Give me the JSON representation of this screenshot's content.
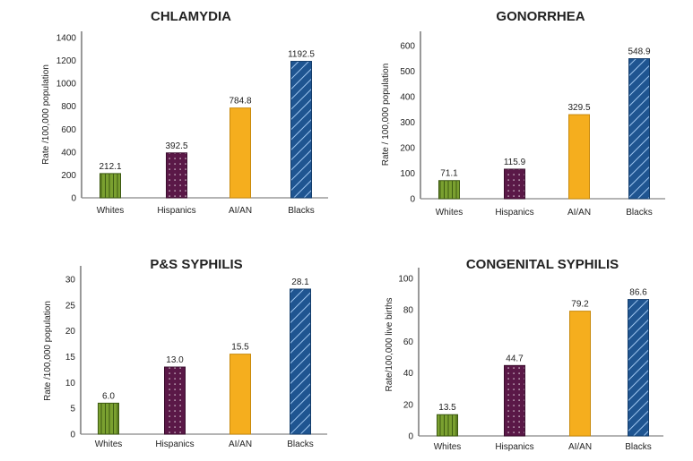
{
  "chart_data": [
    {
      "type": "bar",
      "title": "CHLAMYDIA",
      "xlabel": "",
      "ylabel": "Rate /100,000 population",
      "categories": [
        "Whites",
        "Hispanics",
        "AI/AN",
        "Blacks"
      ],
      "values": [
        212.1,
        392.5,
        784.8,
        1192.5
      ],
      "value_labels": [
        "212.1",
        "392.5",
        "784.8",
        "1192.5"
      ],
      "ylim": [
        0,
        1400
      ],
      "yticks": [
        0,
        200,
        400,
        600,
        800,
        1000,
        1200,
        1400
      ],
      "grid": false
    },
    {
      "type": "bar",
      "title": "GONORRHEA",
      "xlabel": "",
      "ylabel": "Rate / 100,000 population",
      "categories": [
        "Whites",
        "Hispanics",
        "AI/AN",
        "Blacks"
      ],
      "values": [
        71.1,
        115.9,
        329.5,
        548.9
      ],
      "value_labels": [
        "71.1",
        "115.9",
        "329.5",
        "548.9"
      ],
      "ylim": [
        0,
        600
      ],
      "yticks": [
        0,
        100,
        200,
        300,
        400,
        500,
        600
      ],
      "grid": false
    },
    {
      "type": "bar",
      "title": "P&S SYPHILIS",
      "xlabel": "",
      "ylabel": "Rate /100,000 population",
      "categories": [
        "Whites",
        "Hispanics",
        "AI/AN",
        "Blacks"
      ],
      "values": [
        6.0,
        13.0,
        15.5,
        28.1
      ],
      "value_labels": [
        "6.0",
        "13.0",
        "15.5",
        "28.1"
      ],
      "ylim": [
        0,
        30
      ],
      "yticks": [
        0,
        5,
        10,
        15,
        20,
        25,
        30
      ],
      "grid": false
    },
    {
      "type": "bar",
      "title": "CONGENITAL SYPHILIS",
      "xlabel": "",
      "ylabel": "Rate/100,000 live births",
      "categories": [
        "Whites",
        "Hispanics",
        "AI/AN",
        "Blacks"
      ],
      "values": [
        13.5,
        44.7,
        79.2,
        86.6
      ],
      "value_labels": [
        "13.5",
        "44.7",
        "79.2",
        "86.6"
      ],
      "ylim": [
        0,
        100
      ],
      "yticks": [
        0,
        20,
        40,
        60,
        80,
        100
      ],
      "grid": false
    }
  ],
  "series_styles": [
    {
      "category": "Whites",
      "pattern": "vertical-stripes",
      "color": "#6b8e23",
      "stripe_color": "#3d5a12"
    },
    {
      "category": "Hispanics",
      "pattern": "dots",
      "color": "#5a1847",
      "stripe_color": "#ffffff"
    },
    {
      "category": "AI/AN",
      "pattern": "solid",
      "color": "#f5ae1e",
      "stripe_color": "#c98a0c"
    },
    {
      "category": "Blacks",
      "pattern": "diagonal-stripes",
      "color": "#1f5591",
      "stripe_color": "#9ec5ef"
    }
  ]
}
